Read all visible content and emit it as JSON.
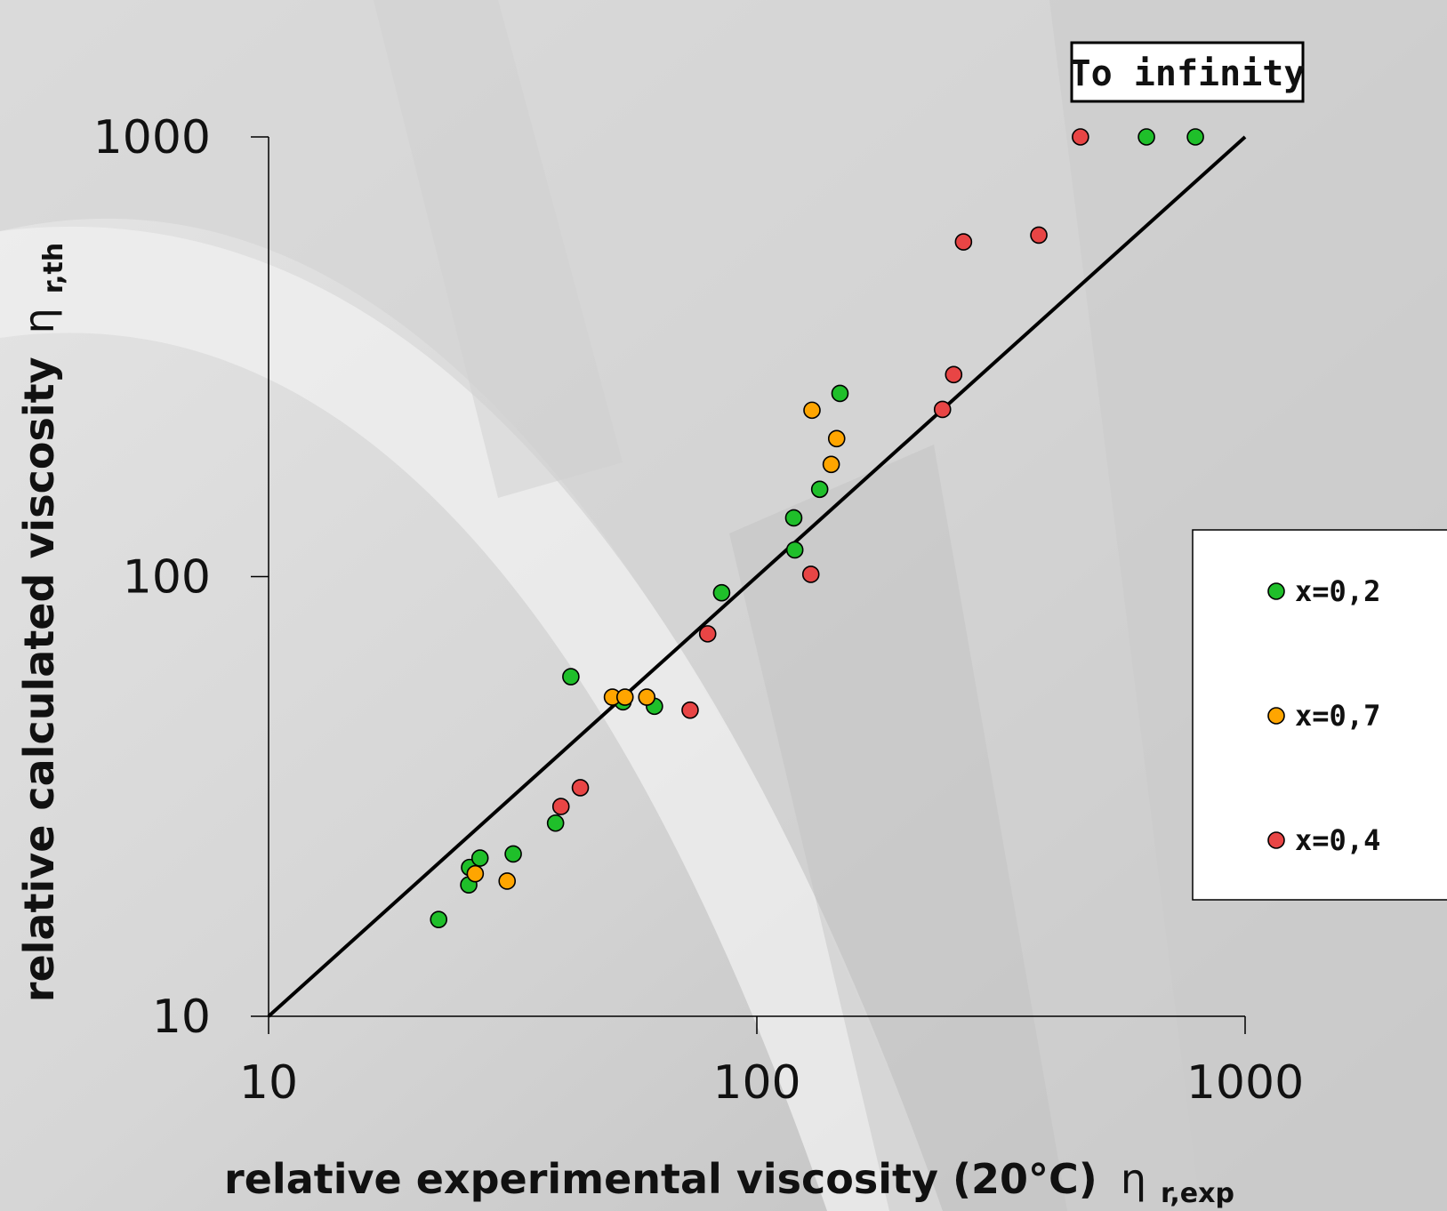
{
  "chart_data": {
    "type": "scatter",
    "xscale": "log",
    "yscale": "log",
    "xlim": [
      10,
      1000
    ],
    "ylim": [
      10,
      1000
    ],
    "xticks": [
      "10",
      "100",
      "1000"
    ],
    "yticks": [
      "10",
      "100",
      "1000"
    ],
    "xlabel": "relative experimental viscosity (20°C)",
    "xlabel_symbol": "η",
    "xlabel_sub": "r,exp",
    "ylabel": "relative calculated viscosity",
    "ylabel_symbol": "η",
    "ylabel_sub": "r,th",
    "grid": false,
    "legend_position": "right",
    "annotation": "To infinity",
    "reference_line": {
      "x": [
        10,
        1000
      ],
      "y": [
        10,
        1000
      ]
    },
    "series": [
      {
        "name": "x=0,2",
        "color": "#1fbf2a",
        "points": [
          {
            "x": 22.3,
            "y": 16.6
          },
          {
            "x": 25.7,
            "y": 19.9
          },
          {
            "x": 25.8,
            "y": 21.8
          },
          {
            "x": 27.1,
            "y": 22.9
          },
          {
            "x": 31.7,
            "y": 23.4
          },
          {
            "x": 38.7,
            "y": 27.5
          },
          {
            "x": 41.6,
            "y": 59.2
          },
          {
            "x": 53.2,
            "y": 51.9
          },
          {
            "x": 61.7,
            "y": 50.7
          },
          {
            "x": 84.7,
            "y": 91.9
          },
          {
            "x": 119.0,
            "y": 136.0
          },
          {
            "x": 119.6,
            "y": 115.0
          },
          {
            "x": 134.5,
            "y": 158.0
          },
          {
            "x": 148.0,
            "y": 261.0
          },
          {
            "x": 628.0,
            "y": 1000.0
          },
          {
            "x": 791.0,
            "y": 1000.0
          }
        ]
      },
      {
        "name": "x=0,7",
        "color": "#ffa500",
        "points": [
          {
            "x": 26.5,
            "y": 21.1
          },
          {
            "x": 30.8,
            "y": 20.3
          },
          {
            "x": 50.6,
            "y": 53.2
          },
          {
            "x": 53.7,
            "y": 53.2
          },
          {
            "x": 59.5,
            "y": 53.2
          },
          {
            "x": 129.7,
            "y": 239.0
          },
          {
            "x": 142.0,
            "y": 180.0
          },
          {
            "x": 145.7,
            "y": 206.0
          }
        ]
      },
      {
        "name": "x=0,4",
        "color": "#e84545",
        "points": [
          {
            "x": 39.7,
            "y": 30.0
          },
          {
            "x": 43.5,
            "y": 33.1
          },
          {
            "x": 73.0,
            "y": 49.7
          },
          {
            "x": 79.3,
            "y": 74.1
          },
          {
            "x": 129.0,
            "y": 101.2
          },
          {
            "x": 240.0,
            "y": 240.0
          },
          {
            "x": 253.0,
            "y": 288.0
          },
          {
            "x": 265.0,
            "y": 577.0
          },
          {
            "x": 378.0,
            "y": 598.0
          },
          {
            "x": 460.0,
            "y": 1000.0
          }
        ]
      }
    ]
  }
}
